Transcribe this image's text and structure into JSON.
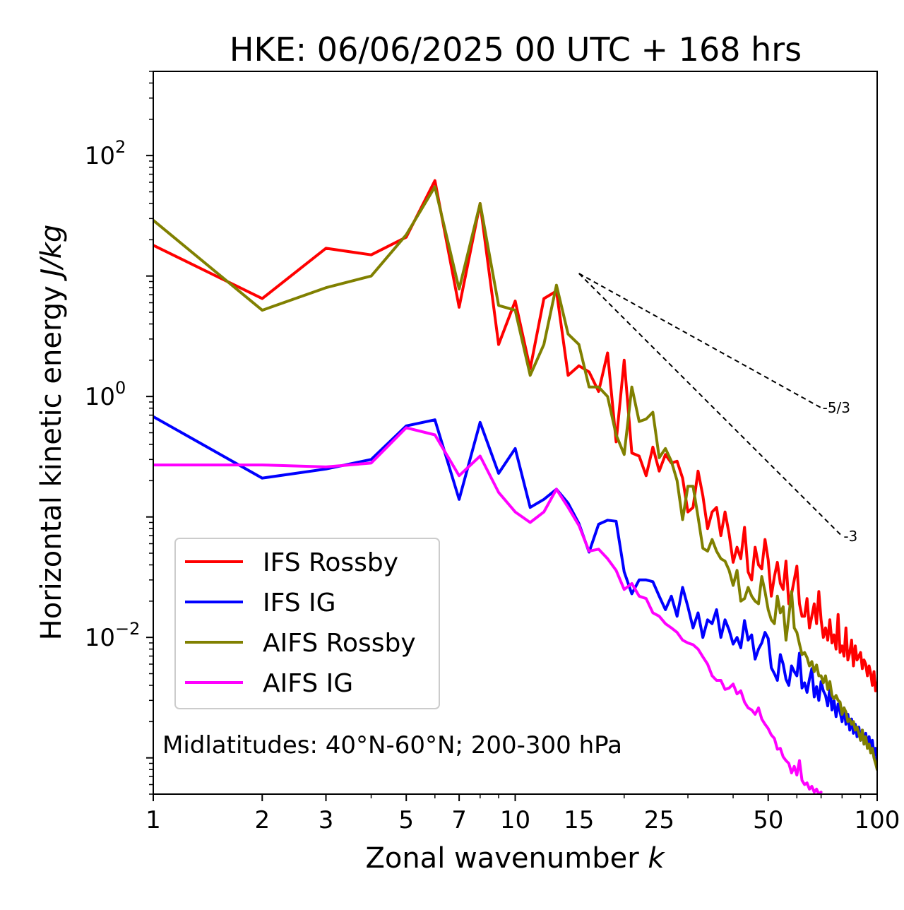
{
  "chart_data": {
    "type": "line",
    "title": "HKE: 06/06/2025 00 UTC + 168 hrs",
    "xlabel": "Zonal wavenumber",
    "xlabel_symbol": "k",
    "ylabel": "Horizontal kinetic energy",
    "ylabel_units": "J/kg",
    "xscale": "log",
    "yscale": "log",
    "xlim": [
      1,
      100
    ],
    "ylim": [
      0.0005,
      500
    ],
    "x_ticks": [
      {
        "value": 1,
        "label": "1"
      },
      {
        "value": 2,
        "label": "2"
      },
      {
        "value": 3,
        "label": "3"
      },
      {
        "value": 5,
        "label": "5"
      },
      {
        "value": 7,
        "label": "7"
      },
      {
        "value": 10,
        "label": "10"
      },
      {
        "value": 15,
        "label": "15"
      },
      {
        "value": 25,
        "label": "25"
      },
      {
        "value": 50,
        "label": "50"
      },
      {
        "value": 100,
        "label": "100"
      }
    ],
    "y_ticks": [
      {
        "value": 100,
        "base": "10",
        "exp": "2"
      },
      {
        "value": 1,
        "base": "10",
        "exp": "0"
      },
      {
        "value": 0.01,
        "base": "10",
        "exp": "−2"
      }
    ],
    "annotation": "Midlatitudes: 40°N-60°N; 200-300 hPa",
    "legend_position": "lower-left",
    "reference_slopes": [
      {
        "label": "-5/3",
        "slope": -1.6667,
        "x_start": 15,
        "x_end": 70,
        "y_start": 10.5
      },
      {
        "label": "-3",
        "slope": -3,
        "x_start": 15,
        "x_end": 80,
        "y_start": 10.5
      }
    ],
    "series": [
      {
        "name": "IFS Rossby",
        "color": "#ff0000",
        "x": [
          1,
          2,
          3,
          4,
          5,
          6,
          7,
          8,
          9,
          10,
          11,
          12,
          13,
          14,
          15,
          16,
          17,
          18,
          19,
          20,
          21,
          22,
          23,
          24,
          25,
          26,
          27,
          28,
          29,
          30,
          31,
          32,
          33,
          34,
          35,
          36,
          37,
          38,
          39,
          40,
          41,
          42,
          43,
          44,
          45,
          46,
          47,
          48,
          49,
          50,
          51,
          52,
          53,
          54,
          55,
          56,
          57,
          58,
          59,
          60,
          61,
          62,
          63,
          64,
          65,
          66,
          67,
          68,
          69,
          70,
          71,
          72,
          73,
          74,
          75,
          76,
          77,
          78,
          79,
          80,
          81,
          82,
          83,
          84,
          85,
          86,
          87,
          88,
          89,
          90,
          91,
          92,
          93,
          94,
          95,
          96,
          97,
          98,
          99,
          100
        ],
        "values": [
          18.0,
          6.5,
          17.0,
          15.0,
          21.0,
          62.0,
          5.5,
          40.0,
          2.7,
          6.2,
          1.7,
          6.5,
          7.5,
          1.5,
          1.8,
          1.6,
          1.1,
          2.3,
          0.42,
          2.0,
          0.34,
          0.32,
          0.22,
          0.38,
          0.24,
          0.33,
          0.28,
          0.29,
          0.21,
          0.11,
          0.12,
          0.24,
          0.15,
          0.08,
          0.11,
          0.12,
          0.07,
          0.11,
          0.072,
          0.042,
          0.056,
          0.045,
          0.082,
          0.035,
          0.03,
          0.056,
          0.04,
          0.037,
          0.065,
          0.044,
          0.022,
          0.032,
          0.042,
          0.028,
          0.025,
          0.043,
          0.019,
          0.023,
          0.03,
          0.039,
          0.019,
          0.015,
          0.015,
          0.021,
          0.012,
          0.015,
          0.019,
          0.013,
          0.024,
          0.014,
          0.01,
          0.012,
          0.0095,
          0.014,
          0.009,
          0.0105,
          0.008,
          0.0155,
          0.0075,
          0.0085,
          0.007,
          0.012,
          0.0065,
          0.0075,
          0.0095,
          0.0058,
          0.0085,
          0.0065,
          0.007,
          0.0075,
          0.0055,
          0.0065,
          0.006,
          0.0048,
          0.0058,
          0.005,
          0.004,
          0.0052,
          0.0036,
          0.0042
        ]
      },
      {
        "name": "IFS IG",
        "color": "#0000ff",
        "x": [
          1,
          2,
          3,
          4,
          5,
          6,
          7,
          8,
          9,
          10,
          11,
          12,
          13,
          14,
          15,
          16,
          17,
          18,
          19,
          20,
          21,
          22,
          23,
          24,
          25,
          26,
          27,
          28,
          29,
          30,
          31,
          32,
          33,
          34,
          35,
          36,
          37,
          38,
          39,
          40,
          41,
          42,
          43,
          44,
          45,
          46,
          47,
          48,
          49,
          50,
          51,
          52,
          53,
          54,
          55,
          56,
          57,
          58,
          59,
          60,
          61,
          62,
          63,
          64,
          65,
          66,
          67,
          68,
          69,
          70,
          71,
          72,
          73,
          74,
          75,
          76,
          77,
          78,
          79,
          80,
          81,
          82,
          83,
          84,
          85,
          86,
          87,
          88,
          89,
          90,
          91,
          92,
          93,
          94,
          95,
          96,
          97,
          98,
          99,
          100
        ],
        "values": [
          0.68,
          0.21,
          0.25,
          0.3,
          0.57,
          0.64,
          0.14,
          0.61,
          0.23,
          0.37,
          0.12,
          0.14,
          0.17,
          0.13,
          0.088,
          0.051,
          0.087,
          0.094,
          0.092,
          0.035,
          0.023,
          0.03,
          0.03,
          0.029,
          0.022,
          0.017,
          0.022,
          0.015,
          0.026,
          0.018,
          0.012,
          0.016,
          0.01,
          0.014,
          0.013,
          0.017,
          0.01,
          0.014,
          0.0115,
          0.0088,
          0.01,
          0.0082,
          0.0138,
          0.0095,
          0.0105,
          0.0066,
          0.008,
          0.009,
          0.011,
          0.0098,
          0.0056,
          0.005,
          0.0044,
          0.0072,
          0.006,
          0.0045,
          0.004,
          0.0058,
          0.0052,
          0.0048,
          0.0074,
          0.0038,
          0.0042,
          0.0035,
          0.0045,
          0.0055,
          0.0032,
          0.0039,
          0.003,
          0.0043,
          0.0036,
          0.0033,
          0.0027,
          0.0038,
          0.0025,
          0.003,
          0.0022,
          0.0028,
          0.0024,
          0.002,
          0.0026,
          0.0019,
          0.0023,
          0.0017,
          0.0021,
          0.0016,
          0.0019,
          0.0015,
          0.0018,
          0.0014,
          0.0017,
          0.0013,
          0.0016,
          0.00125,
          0.0015,
          0.00115,
          0.0014,
          0.00105,
          0.0012,
          0.00095
        ]
      },
      {
        "name": "AIFS Rossby",
        "color": "#808000",
        "x": [
          1,
          2,
          3,
          4,
          5,
          6,
          7,
          8,
          9,
          10,
          11,
          12,
          13,
          14,
          15,
          16,
          17,
          18,
          19,
          20,
          21,
          22,
          23,
          24,
          25,
          26,
          27,
          28,
          29,
          30,
          31,
          32,
          33,
          34,
          35,
          36,
          37,
          38,
          39,
          40,
          41,
          42,
          43,
          44,
          45,
          46,
          47,
          48,
          49,
          50,
          51,
          52,
          53,
          54,
          55,
          56,
          57,
          58,
          59,
          60,
          61,
          62,
          63,
          64,
          65,
          66,
          67,
          68,
          69,
          70,
          71,
          72,
          73,
          74,
          75,
          76,
          77,
          78,
          79,
          80,
          81,
          82,
          83,
          84,
          85,
          86,
          87,
          88,
          89,
          90,
          91,
          92,
          93,
          94,
          95,
          96,
          97,
          98,
          99,
          100
        ],
        "values": [
          29.0,
          5.2,
          8.0,
          10.0,
          22.0,
          55.0,
          7.8,
          40.0,
          5.7,
          5.2,
          1.5,
          2.7,
          8.4,
          3.3,
          2.7,
          1.2,
          1.2,
          1.0,
          0.48,
          0.33,
          1.2,
          0.62,
          0.65,
          0.74,
          0.31,
          0.37,
          0.29,
          0.2,
          0.095,
          0.18,
          0.18,
          0.1,
          0.055,
          0.052,
          0.065,
          0.052,
          0.045,
          0.043,
          0.036,
          0.027,
          0.036,
          0.02,
          0.021,
          0.026,
          0.022,
          0.02,
          0.019,
          0.032,
          0.024,
          0.017,
          0.014,
          0.013,
          0.022,
          0.016,
          0.018,
          0.0095,
          0.015,
          0.024,
          0.012,
          0.011,
          0.0088,
          0.0072,
          0.0075,
          0.0068,
          0.0058,
          0.0063,
          0.0052,
          0.0059,
          0.0048,
          0.0048,
          0.0042,
          0.0048,
          0.0037,
          0.0043,
          0.0033,
          0.0031,
          0.0033,
          0.003,
          0.0029,
          0.0023,
          0.0026,
          0.0024,
          0.002,
          0.0021,
          0.0019,
          0.002,
          0.0017,
          0.0018,
          0.0016,
          0.0014,
          0.0017,
          0.0013,
          0.0015,
          0.0012,
          0.0013,
          0.0011,
          0.0012,
          0.001,
          0.0009,
          0.0008
        ]
      },
      {
        "name": "AIFS IG",
        "color": "#ff00ff",
        "x": [
          1,
          2,
          3,
          4,
          5,
          6,
          7,
          8,
          9,
          10,
          11,
          12,
          13,
          14,
          15,
          16,
          17,
          18,
          19,
          20,
          21,
          22,
          23,
          24,
          25,
          26,
          27,
          28,
          29,
          30,
          31,
          32,
          33,
          34,
          35,
          36,
          37,
          38,
          39,
          40,
          41,
          42,
          43,
          44,
          45,
          46,
          47,
          48,
          49,
          50,
          51,
          52,
          53,
          54,
          55,
          56,
          57,
          58,
          59,
          60,
          61,
          62,
          63,
          64,
          65,
          66,
          67,
          68,
          69,
          70
        ],
        "values": [
          0.27,
          0.27,
          0.26,
          0.28,
          0.55,
          0.48,
          0.22,
          0.32,
          0.16,
          0.11,
          0.09,
          0.11,
          0.17,
          0.12,
          0.085,
          0.052,
          0.054,
          0.045,
          0.036,
          0.025,
          0.028,
          0.022,
          0.021,
          0.016,
          0.015,
          0.013,
          0.012,
          0.011,
          0.0095,
          0.009,
          0.0087,
          0.008,
          0.0069,
          0.006,
          0.0048,
          0.0044,
          0.0044,
          0.0037,
          0.0038,
          0.0041,
          0.0034,
          0.0036,
          0.0029,
          0.0026,
          0.0025,
          0.0023,
          0.0026,
          0.0021,
          0.0019,
          0.00175,
          0.00155,
          0.00145,
          0.00118,
          0.0012,
          0.00102,
          0.00095,
          0.0009,
          0.00075,
          0.00085,
          0.00072,
          0.00095,
          0.00065,
          0.0006,
          0.00062,
          0.00055,
          0.00058,
          0.00052,
          0.00055,
          0.0005,
          0.00052
        ]
      }
    ]
  }
}
